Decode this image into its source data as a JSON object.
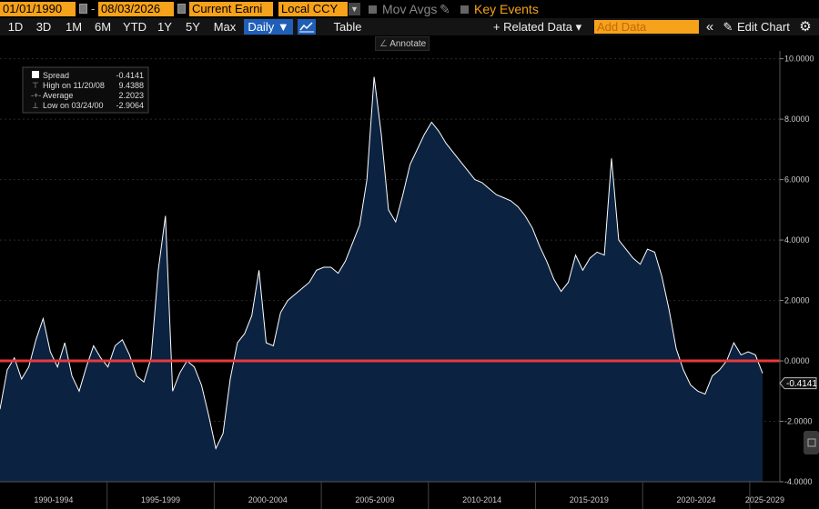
{
  "toolbar": {
    "start_date": "01/01/1990",
    "end_date": "08/03/2026",
    "field": "Current Earni",
    "currency": "Local CCY",
    "mov_avgs": "Mov Avgs",
    "key_events": "Key Events"
  },
  "ranges": [
    "1D",
    "3D",
    "1M",
    "6M",
    "YTD",
    "1Y",
    "5Y",
    "Max"
  ],
  "frequency": "Daily ▼",
  "table_label": "Table",
  "related_data": "+ Related Data ▾",
  "add_data_placeholder": "Add Data",
  "nav_back": "«",
  "edit_chart": "Edit Chart",
  "annotate": "Annotate",
  "legend": {
    "spread_label": "Spread",
    "spread_value": "-0.4141",
    "high_label": "High on 11/20/08",
    "high_value": "9.4388",
    "avg_label": "Average",
    "avg_value": "2.2023",
    "low_label": "Low on 03/24/00",
    "low_value": "-2.9064"
  },
  "colors": {
    "accent": "#f7a21b",
    "area_fill": "#0b2241",
    "line": "#ffffff",
    "ref_line": "#e8393d",
    "highlight": "#1f5fb8"
  },
  "chart_data": {
    "type": "area",
    "series": [
      {
        "name": "Spread",
        "values": [
          -1.6,
          -0.3,
          0.1,
          -0.6,
          -0.2,
          0.7,
          1.4,
          0.3,
          -0.2,
          0.6,
          -0.5,
          -1.0,
          -0.2,
          0.5,
          0.1,
          -0.2,
          0.5,
          0.7,
          0.2,
          -0.5,
          -0.7,
          0.1,
          3.0,
          4.8,
          -1.0,
          -0.4,
          0.0,
          -0.2,
          -0.8,
          -1.8,
          -2.9,
          -2.4,
          -0.6,
          0.6,
          0.9,
          1.5,
          3.0,
          0.6,
          0.5,
          1.6,
          2.0,
          2.2,
          2.4,
          2.6,
          3.0,
          3.1,
          3.1,
          2.9,
          3.3,
          3.9,
          4.5,
          6.0,
          9.4,
          7.5,
          5.0,
          4.6,
          5.5,
          6.5,
          7.0,
          7.5,
          7.9,
          7.6,
          7.2,
          6.9,
          6.6,
          6.3,
          6.0,
          5.9,
          5.7,
          5.5,
          5.4,
          5.3,
          5.1,
          4.8,
          4.4,
          3.8,
          3.3,
          2.7,
          2.3,
          2.6,
          3.5,
          3.0,
          3.4,
          3.6,
          3.5,
          6.7,
          4.0,
          3.7,
          3.4,
          3.2,
          3.7,
          3.6,
          2.8,
          1.7,
          0.4,
          -0.3,
          -0.8,
          -1.0,
          -1.1,
          -0.5,
          -0.3,
          0.0,
          0.6,
          0.2,
          0.3,
          0.2,
          -0.41
        ]
      }
    ],
    "x_range": [
      1990.0,
      2025.6
    ],
    "x_tick_labels": [
      "1990-1994",
      "1995-1999",
      "2000-2004",
      "2005-2009",
      "2010-2014",
      "2015-2019",
      "2020-2024",
      "2025-2029"
    ],
    "y_ticks": [
      -4,
      -2,
      0,
      2,
      4,
      6,
      8,
      10
    ],
    "y_tick_labels": [
      "-4.0000",
      "-2.0000",
      "0.0000",
      "2.0000",
      "4.0000",
      "6.0000",
      "8.0000",
      "10.0000"
    ],
    "ylim": [
      -4,
      10.2
    ],
    "reference_line": 0.0,
    "last_value": "-0.4141",
    "grid": true
  }
}
